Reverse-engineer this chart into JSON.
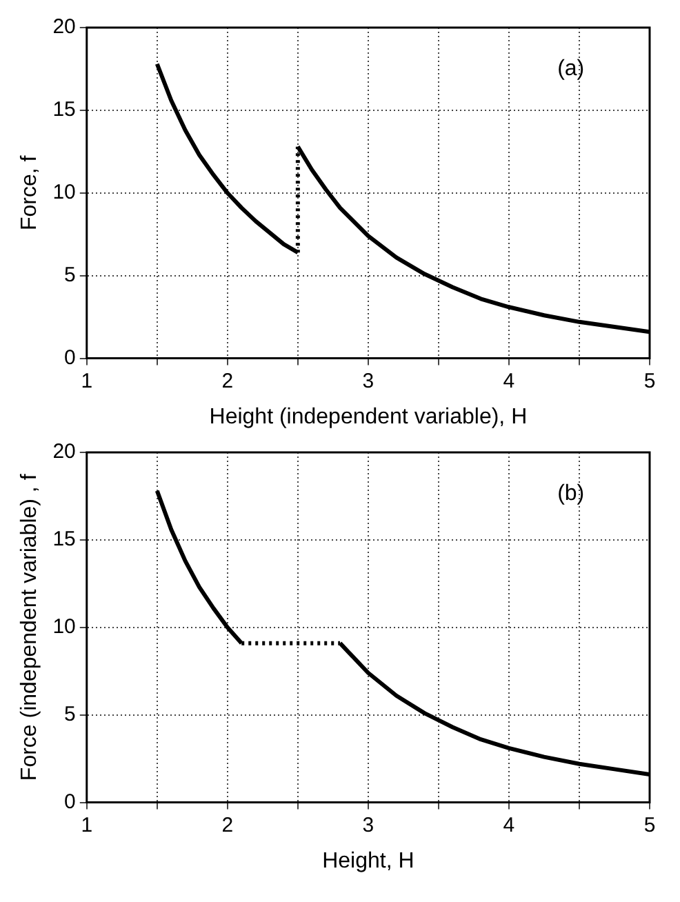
{
  "chart_data": [
    {
      "type": "line",
      "xlabel": "Height (independent variable), H",
      "ylabel": "Force, f",
      "annotations": [
        "(a)"
      ],
      "xlim": [
        1,
        5
      ],
      "ylim": [
        0,
        20
      ],
      "xticks": [
        1,
        {
          "value": 1.5,
          "label": null
        },
        2,
        {
          "value": 2.5,
          "label": null
        },
        3,
        {
          "value": 3.5,
          "label": null
        },
        4,
        {
          "value": 4.5,
          "label": null
        },
        5
      ],
      "yticks": [
        0,
        5,
        10,
        15,
        20
      ],
      "grid": true,
      "legend": false,
      "marker": "none",
      "series": [
        {
          "color": "#000000",
          "line_style": "solid",
          "x": [
            1.5,
            1.6,
            1.7,
            1.8,
            1.9,
            2.0,
            2.1,
            2.2,
            2.3,
            2.4,
            2.5
          ],
          "values": [
            17.8,
            15.6,
            13.8,
            12.3,
            11.1,
            10.0,
            9.1,
            8.3,
            7.6,
            6.9,
            6.4
          ]
        },
        {
          "color": "#000000",
          "line_style": "dotted",
          "x": [
            2.5,
            2.5
          ],
          "values": [
            6.4,
            12.8
          ]
        },
        {
          "color": "#000000",
          "line_style": "solid",
          "x": [
            2.5,
            2.6,
            2.7,
            2.8,
            3.0,
            3.2,
            3.4,
            3.6,
            3.8,
            4.0,
            4.25,
            4.5,
            4.75,
            5.0
          ],
          "values": [
            12.8,
            11.4,
            10.2,
            9.1,
            7.4,
            6.1,
            5.1,
            4.3,
            3.6,
            3.1,
            2.6,
            2.2,
            1.9,
            1.6
          ]
        }
      ]
    },
    {
      "type": "line",
      "xlabel": "Height, H",
      "ylabel": "Force (independent variable) , f",
      "annotations": [
        "(b)"
      ],
      "xlim": [
        1,
        5
      ],
      "ylim": [
        0,
        20
      ],
      "xticks": [
        1,
        {
          "value": 1.5,
          "label": null
        },
        2,
        {
          "value": 2.5,
          "label": null
        },
        3,
        {
          "value": 3.5,
          "label": null
        },
        4,
        {
          "value": 4.5,
          "label": null
        },
        5
      ],
      "yticks": [
        0,
        5,
        10,
        15,
        20
      ],
      "grid": true,
      "legend": false,
      "marker": "none",
      "series": [
        {
          "color": "#000000",
          "line_style": "solid",
          "x": [
            1.5,
            1.6,
            1.7,
            1.8,
            1.9,
            2.0,
            2.1
          ],
          "values": [
            17.8,
            15.6,
            13.8,
            12.3,
            11.1,
            10.0,
            9.1
          ]
        },
        {
          "color": "#000000",
          "line_style": "dotted",
          "x": [
            2.1,
            2.8
          ],
          "values": [
            9.1,
            9.1
          ]
        },
        {
          "color": "#000000",
          "line_style": "solid",
          "x": [
            2.8,
            3.0,
            3.2,
            3.4,
            3.6,
            3.8,
            4.0,
            4.25,
            4.5,
            4.75,
            5.0
          ],
          "values": [
            9.1,
            7.4,
            6.1,
            5.1,
            4.3,
            3.6,
            3.1,
            2.6,
            2.2,
            1.9,
            1.6
          ]
        }
      ]
    }
  ]
}
